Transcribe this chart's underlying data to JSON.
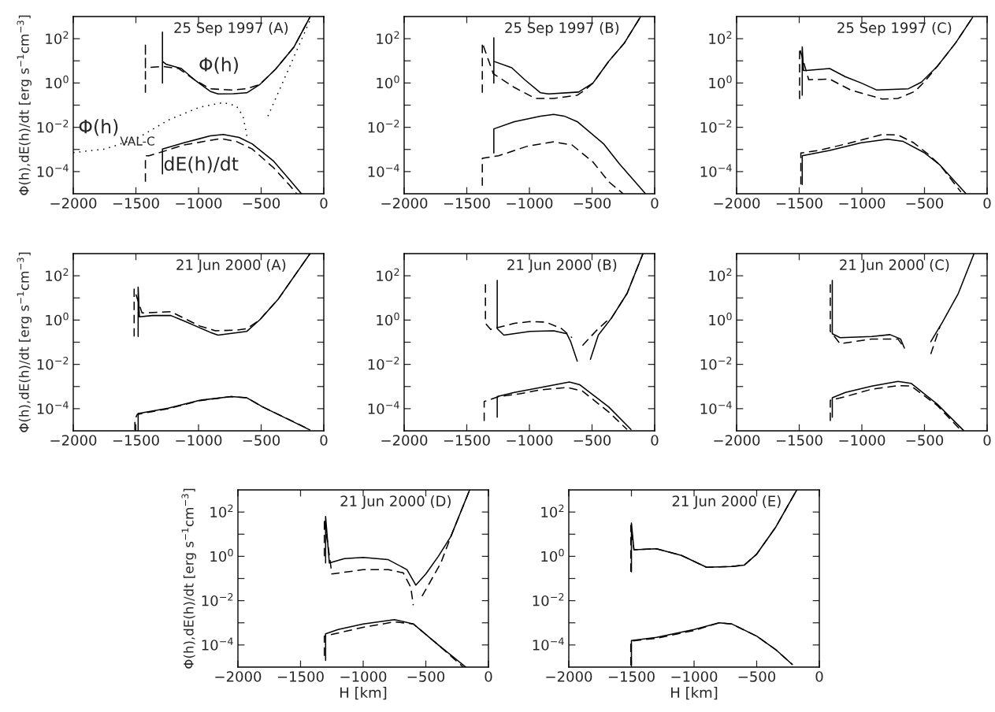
{
  "chart_data": [
    {
      "type": "line",
      "title": "25 Sep 1997 (A)",
      "ylabel": "Φ(h),dE(h)/dt [erg s$^{−1}$cm$^{−3}$]",
      "xlim": [
        -2000,
        0
      ],
      "xticks": [
        -2000,
        -1500,
        -1000,
        -500,
        0
      ],
      "ylim": [
        1e-05,
        1000
      ],
      "log": "y",
      "yticks": [
        {
          "value": 0.0001,
          "label": "10$^{−4}$"
        },
        {
          "value": 0.001,
          "label": null
        },
        {
          "value": 0.01,
          "label": "10$^{−2}$"
        },
        {
          "value": 0.1,
          "label": null
        },
        {
          "value": 1,
          "label": "10$^{0}$"
        },
        {
          "value": 10,
          "label": null
        },
        {
          "value": 100,
          "label": "10$^{2}$"
        }
      ],
      "annotations": [
        "Φ(h)",
        "Φ(h)$_{VAL-C}$",
        "dE(h)/dt"
      ],
      "series": [
        {
          "type": "line",
          "line_style": "solid",
          "color": "#000000",
          "x": [
            -1288,
            -1288,
            -1288,
            -1260,
            -1137,
            -1032,
            -907,
            -844,
            -720,
            -614,
            -509,
            -383,
            -237,
            -111
          ],
          "values": [
            1.0,
            200,
            9.5,
            7.1,
            4.5,
            1.4,
            0.42,
            0.32,
            0.33,
            0.36,
            0.87,
            4.3,
            43,
            930
          ]
        },
        {
          "type": "line",
          "line_style": "dashed",
          "color": "#000000",
          "x": [
            -1424,
            -1424,
            -1424,
            -1290,
            -1158,
            -1032,
            -907,
            -740,
            -614,
            -509,
            -383,
            -237,
            -111
          ],
          "values": [
            0.36,
            63,
            4.9,
            5.6,
            4.5,
            1.4,
            0.55,
            0.48,
            0.55,
            0.87,
            4.3,
            43,
            930
          ]
        },
        {
          "type": "line",
          "line_style": "solid",
          "color": "#000000",
          "x": [
            -1288,
            -1288,
            -1116,
            -907,
            -802,
            -676,
            -572,
            -404,
            -278,
            -178
          ],
          "values": [
            7.9e-05,
            0.00105,
            0.002,
            0.0041,
            0.0047,
            0.0035,
            0.0018,
            0.00031,
            4.6e-05,
            1e-05
          ]
        },
        {
          "type": "line",
          "line_style": "dashed",
          "color": "#000000",
          "x": [
            -1424,
            -1424,
            -1395,
            -1288,
            -1116,
            -823,
            -698,
            -572,
            -404,
            -278,
            -216
          ],
          "values": [
            3.5e-05,
            0.00052,
            0.00052,
            0.00079,
            0.0016,
            0.0031,
            0.0023,
            0.00105,
            0.000155,
            2.6e-05,
            1e-05
          ]
        },
        {
          "type": "line",
          "line_style": "dotted",
          "color": "#000000",
          "x": [
            -2000,
            -1745,
            -1493,
            -1242,
            -991,
            -802,
            -698,
            -645,
            -614,
            -530,
            -446,
            -111
          ],
          "values": [
            0.00072,
            0.00105,
            0.0031,
            0.021,
            0.081,
            0.13,
            0.093,
            0.032,
            0.0041,
            null,
            0.032,
            660
          ]
        }
      ]
    },
    {
      "type": "line",
      "title": "25 Sep 1997 (B)",
      "xlim": [
        -2000,
        0
      ],
      "xticks": [
        -2000,
        -1500,
        -1000,
        -500,
        0
      ],
      "ylim": [
        1e-05,
        1000
      ],
      "log": "y",
      "yticks": [
        {
          "value": 0.0001,
          "label": "10$^{−4}$"
        },
        {
          "value": 0.001,
          "label": null
        },
        {
          "value": 0.01,
          "label": "10$^{−2}$"
        },
        {
          "value": 0.1,
          "label": null
        },
        {
          "value": 1,
          "label": "10$^{0}$"
        },
        {
          "value": 10,
          "label": null
        },
        {
          "value": 100,
          "label": "10$^{2}$"
        }
      ],
      "series": [
        {
          "type": "line",
          "line_style": "solid",
          "color": "#000000",
          "x": [
            -1284,
            -1284,
            -1284,
            -1141,
            -1037,
            -911,
            -848,
            -607,
            -492,
            -367,
            -241,
            -115
          ],
          "values": [
            1.0,
            110,
            9.5,
            4.9,
            1.4,
            0.36,
            0.32,
            0.39,
            1.0,
            9.5,
            65,
            930
          ]
        },
        {
          "type": "line",
          "line_style": "dashed",
          "color": "#000000",
          "x": [
            -1376,
            -1376,
            -1288,
            -1120,
            -953,
            -806,
            -618,
            -555,
            -492,
            -367,
            -241,
            -115
          ],
          "values": [
            0.36,
            65,
            2.6,
            0.63,
            0.2,
            0.2,
            0.28,
            0.48,
            1.0,
            9.5,
            65,
            930
          ]
        },
        {
          "type": "line",
          "line_style": "solid",
          "color": "#000000",
          "x": [
            -1284,
            -1284,
            -1120,
            -911,
            -806,
            -722,
            -618,
            -408,
            -283,
            -73
          ],
          "values": [
            0.00069,
            0.0085,
            0.018,
            0.032,
            0.038,
            0.032,
            0.018,
            0.0018,
            0.00023,
            1e-05
          ]
        },
        {
          "type": "line",
          "line_style": "dashed",
          "color": "#000000",
          "x": [
            -1376,
            -1376,
            -1246,
            -1016,
            -806,
            -660,
            -492,
            -367,
            -251
          ],
          "values": [
            2.3e-05,
            0.0004,
            0.00052,
            0.0014,
            0.0022,
            0.0016,
            0.00027,
            3.5e-05,
            1e-05
          ]
        }
      ]
    },
    {
      "type": "line",
      "title": "25 Sep 1997 (C)",
      "xlim": [
        -2000,
        0
      ],
      "xticks": [
        -2000,
        -1500,
        -1000,
        -500,
        0
      ],
      "ylim": [
        1e-05,
        1000
      ],
      "log": "y",
      "yticks": [
        {
          "value": 0.0001,
          "label": "10$^{−4}$"
        },
        {
          "value": 0.001,
          "label": null
        },
        {
          "value": 0.01,
          "label": "10$^{−2}$"
        },
        {
          "value": 0.1,
          "label": null
        },
        {
          "value": 1,
          "label": "10$^{0}$"
        },
        {
          "value": 10,
          "label": null
        },
        {
          "value": 100,
          "label": "10$^{2}$"
        }
      ],
      "series": [
        {
          "type": "line",
          "line_style": "solid",
          "color": "#000000",
          "x": [
            -1476,
            -1476,
            -1466,
            -1445,
            -1257,
            -1131,
            -1005,
            -880,
            -628,
            -524,
            -398,
            -251,
            -115
          ],
          "values": [
            0.28,
            43,
            3.7,
            3.7,
            4.5,
            1.9,
            1.0,
            0.48,
            0.55,
            1.1,
            5.6,
            65,
            930
          ]
        },
        {
          "type": "line",
          "line_style": "dashed",
          "color": "#000000",
          "x": [
            -1497,
            -1497,
            -1424,
            -1257,
            -1089,
            -838,
            -712,
            -576,
            -503,
            -398,
            -251,
            -115
          ],
          "values": [
            0.19,
            37,
            1.4,
            1.5,
            0.48,
            0.19,
            0.2,
            0.42,
            1.1,
            5.6,
            65,
            930
          ]
        },
        {
          "type": "line",
          "line_style": "solid",
          "color": "#000000",
          "x": [
            -1476,
            -1476,
            -1257,
            -1005,
            -796,
            -670,
            -503,
            -377,
            -168
          ],
          "values": [
            2.6e-05,
            0.00052,
            0.00091,
            0.002,
            0.0029,
            0.0023,
            0.00072,
            0.0002,
            1e-05
          ]
        },
        {
          "type": "line",
          "line_style": "dashed",
          "color": "#000000",
          "x": [
            -1487,
            -1487,
            -1340,
            -1089,
            -838,
            -712,
            -586,
            -482,
            -377,
            -209
          ],
          "values": [
            2.6e-05,
            0.00069,
            0.00091,
            0.002,
            0.0047,
            0.0045,
            0.002,
            0.00069,
            0.0002,
            1.2e-05
          ]
        }
      ]
    },
    {
      "type": "line",
      "title": "21 Jun 2000 (A)",
      "ylabel": "Φ(h),dE(h)/dt [erg s$^{−1}$cm$^{−3}$]",
      "xlim": [
        -2000,
        0
      ],
      "xticks": [
        -2000,
        -1500,
        -1000,
        -500,
        0
      ],
      "ylim": [
        1e-05,
        1000
      ],
      "log": "y",
      "yticks": [
        {
          "value": 0.0001,
          "label": "10$^{−4}$"
        },
        {
          "value": 0.001,
          "label": null
        },
        {
          "value": 0.01,
          "label": "10$^{−2}$"
        },
        {
          "value": 0.1,
          "label": null
        },
        {
          "value": 1,
          "label": "10$^{0}$"
        },
        {
          "value": 10,
          "label": null
        },
        {
          "value": 100,
          "label": "10$^{2}$"
        }
      ],
      "series": [
        {
          "type": "line",
          "line_style": "solid",
          "color": "#000000",
          "x": [
            -1482,
            -1482,
            -1472,
            -1368,
            -1221,
            -1116,
            -907,
            -844,
            -760,
            -614,
            -509,
            -362,
            -111
          ],
          "values": [
            0.18,
            31,
            1.4,
            1.6,
            1.6,
            0.91,
            0.28,
            0.21,
            0.24,
            0.31,
            1.05,
            9.1,
            980
          ]
        },
        {
          "type": "line",
          "line_style": "dashed",
          "color": "#000000",
          "x": [
            -1514,
            -1514,
            -1451,
            -1221,
            -991,
            -865,
            -698,
            -614,
            -509,
            -362,
            -111
          ],
          "values": [
            0.18,
            25,
            2.1,
            2.4,
            0.54,
            0.33,
            0.35,
            0.41,
            1.05,
            9.1,
            980
          ]
        },
        {
          "type": "line",
          "line_style": "solid",
          "color": "#000000",
          "x": [
            -1482,
            -1482,
            -1472,
            -1242,
            -991,
            -739,
            -614,
            -488,
            -111
          ],
          "values": [
            1.05e-05,
            6.2e-05,
            6.2e-05,
            0.000105,
            0.00024,
            0.00035,
            0.00031,
            0.00012,
            1.1e-05
          ]
        },
        {
          "type": "line",
          "line_style": "dashed",
          "color": "#000000",
          "x": [
            -1508,
            -1508,
            -1490,
            -1242,
            -991,
            -739,
            -614,
            -488,
            -120
          ],
          "values": [
            1.05e-05,
            3.1e-05,
            5.5e-05,
            0.0001,
            0.00023,
            0.00035,
            0.00031,
            0.00012,
            1.2e-05
          ]
        }
      ]
    },
    {
      "type": "line",
      "title": "21 Jun 2000 (B)",
      "xlim": [
        -2000,
        0
      ],
      "xticks": [
        -2000,
        -1500,
        -1000,
        -500,
        0
      ],
      "ylim": [
        1e-05,
        1000
      ],
      "log": "y",
      "yticks": [
        {
          "value": 0.0001,
          "label": "10$^{−4}$"
        },
        {
          "value": 0.001,
          "label": null
        },
        {
          "value": 0.01,
          "label": "10$^{−2}$"
        },
        {
          "value": 0.1,
          "label": null
        },
        {
          "value": 1,
          "label": "10$^{0}$"
        },
        {
          "value": 10,
          "label": null
        },
        {
          "value": 100,
          "label": "10$^{2}$"
        }
      ],
      "series": [
        {
          "type": "line",
          "line_style": "solid",
          "color": "#000000",
          "x": [
            -1257,
            -1257,
            -1204,
            -995,
            -806,
            -701,
            -670,
            -618,
            -560,
            -513,
            -450,
            -346,
            -220,
            -94
          ],
          "values": [
            62,
            0.41,
            0.21,
            0.31,
            0.33,
            0.24,
            0.105,
            0.014,
            null,
            0.017,
            0.21,
            1.2,
            16,
            980
          ]
        },
        {
          "type": "line",
          "line_style": "dashed",
          "color": "#000000",
          "x": [
            -1351,
            -1351,
            -1309,
            -1120,
            -995,
            -869,
            -743,
            -660,
            -620,
            -576,
            -471,
            -388,
            -346,
            -220,
            -94
          ],
          "values": [
            41,
            0.71,
            0.38,
            0.71,
            0.85,
            0.81,
            0.41,
            0.16,
            null,
            0.071,
            0.31,
            0.85,
            1.2,
            16,
            980
          ]
        },
        {
          "type": "line",
          "line_style": "solid",
          "color": "#000000",
          "x": [
            -1257,
            -1257,
            -1120,
            -911,
            -681,
            -597,
            -367,
            -189
          ],
          "values": [
            4.1e-05,
            0.00035,
            0.00054,
            0.00091,
            0.0016,
            0.0012,
            0.00012,
            1.15e-05
          ]
        },
        {
          "type": "line",
          "line_style": "dashed",
          "color": "#000000",
          "x": [
            -1361,
            -1361,
            -1246,
            -1079,
            -911,
            -701,
            -576,
            -367,
            -220
          ],
          "values": [
            2.8e-05,
            0.00021,
            0.00035,
            0.00047,
            0.00071,
            0.00091,
            0.00062,
            7.1e-05,
            1.15e-05
          ]
        }
      ]
    },
    {
      "type": "line",
      "title": "21 Jun 2000 (C)",
      "xlim": [
        -2000,
        0
      ],
      "xticks": [
        -2000,
        -1500,
        -1000,
        -500,
        0
      ],
      "ylim": [
        1e-05,
        1000
      ],
      "log": "y",
      "yticks": [
        {
          "value": 0.0001,
          "label": "10$^{−4}$"
        },
        {
          "value": 0.001,
          "label": null
        },
        {
          "value": 0.01,
          "label": "10$^{−2}$"
        },
        {
          "value": 0.1,
          "label": null
        },
        {
          "value": 1,
          "label": "10$^{0}$"
        },
        {
          "value": 10,
          "label": null
        },
        {
          "value": 100,
          "label": "10$^{2}$"
        }
      ],
      "series": [
        {
          "type": "line",
          "line_style": "solid",
          "color": "#000000",
          "x": [
            -1236,
            -1236,
            -1173,
            -921,
            -775,
            -691,
            -660,
            -560,
            -450,
            -356,
            -230,
            -105
          ],
          "values": [
            62,
            0.24,
            0.16,
            0.18,
            0.22,
            0.14,
            0.054,
            null,
            0.105,
            0.81,
            16,
            980
          ]
        },
        {
          "type": "line",
          "line_style": "dashed",
          "color": "#000000",
          "x": [
            -1252,
            -1252,
            -1173,
            -921,
            -712,
            -660,
            -560,
            -450,
            -377
          ],
          "values": [
            41,
            0.31,
            0.085,
            0.14,
            0.14,
            0.054,
            null,
            0.029,
            0.5
          ]
        },
        {
          "type": "line",
          "line_style": "solid",
          "color": "#000000",
          "x": [
            -1236,
            -1236,
            -1131,
            -921,
            -712,
            -607,
            -398,
            -189
          ],
          "values": [
            4.1e-05,
            0.00031,
            0.00054,
            0.00105,
            0.0017,
            0.0014,
            0.00016,
            1.05e-05
          ]
        },
        {
          "type": "line",
          "line_style": "dashed",
          "color": "#000000",
          "x": [
            -1252,
            -1252,
            -1131,
            -921,
            -712,
            -607,
            -398,
            -209
          ],
          "values": [
            2.8e-05,
            0.00024,
            0.00035,
            0.00076,
            0.0011,
            0.00105,
            0.00014,
            1.05e-05
          ]
        }
      ]
    },
    {
      "type": "line",
      "title": "21 Jun 2000 (D)",
      "xlabel": "H [km]",
      "ylabel": "Φ(h),dE(h)/dt [erg s$^{−1}$cm$^{−3}$]",
      "xlim": [
        -2000,
        0
      ],
      "xticks": [
        -2000,
        -1500,
        -1000,
        -500,
        0
      ],
      "ylim": [
        1e-05,
        1000
      ],
      "log": "y",
      "yticks": [
        {
          "value": 0.0001,
          "label": "10$^{−4}$"
        },
        {
          "value": 0.001,
          "label": null
        },
        {
          "value": 0.01,
          "label": "10$^{−2}$"
        },
        {
          "value": 0.1,
          "label": null
        },
        {
          "value": 1,
          "label": "10$^{0}$"
        },
        {
          "value": 10,
          "label": null
        },
        {
          "value": 100,
          "label": "10$^{2}$"
        }
      ],
      "series": [
        {
          "type": "line",
          "line_style": "solid",
          "color": "#000000",
          "x": [
            -1300,
            -1300,
            -1270,
            -1150,
            -1000,
            -800,
            -650,
            -580,
            -500,
            -400,
            -300,
            -150
          ],
          "values": [
            0.5,
            63,
            0.5,
            0.79,
            0.89,
            0.71,
            0.25,
            0.05,
            0.16,
            1.0,
            7.9,
            1000
          ]
        },
        {
          "type": "line",
          "line_style": "dashed",
          "color": "#000000",
          "x": [
            -1310,
            -1310,
            -1250,
            -1000,
            -800,
            -680,
            -620,
            -600,
            -560,
            -530,
            -450,
            -380,
            -300,
            -150
          ],
          "values": [
            1.0,
            50,
            0.16,
            0.25,
            0.25,
            0.18,
            0.04,
            0.0063,
            null,
            0.016,
            0.1,
            0.5,
            7.9,
            1000
          ]
        },
        {
          "type": "line",
          "line_style": "solid",
          "color": "#000000",
          "x": [
            -1300,
            -1300,
            -1200,
            -1000,
            -750,
            -600,
            -400,
            -180
          ],
          "values": [
            2e-05,
            0.00032,
            0.0005,
            0.00089,
            0.0014,
            0.00089,
            0.0001,
            1e-05
          ]
        },
        {
          "type": "line",
          "line_style": "dashed",
          "color": "#000000",
          "x": [
            -1310,
            -1310,
            -1000,
            -750,
            -600,
            -400,
            -200
          ],
          "values": [
            3.2e-05,
            0.00025,
            0.00063,
            0.0011,
            0.00089,
            0.0001,
            1e-05
          ]
        }
      ]
    },
    {
      "type": "line",
      "title": "21 Jun 2000 (E)",
      "xlabel": "H [km]",
      "xlim": [
        -2000,
        0
      ],
      "xticks": [
        -2000,
        -1500,
        -1000,
        -500,
        0
      ],
      "ylim": [
        1e-05,
        1000
      ],
      "log": "y",
      "yticks": [
        {
          "value": 0.0001,
          "label": "10$^{−4}$"
        },
        {
          "value": 0.001,
          "label": null
        },
        {
          "value": 0.01,
          "label": "10$^{−2}$"
        },
        {
          "value": 0.1,
          "label": null
        },
        {
          "value": 1,
          "label": "10$^{0}$"
        },
        {
          "value": 10,
          "label": null
        },
        {
          "value": 100,
          "label": "10$^{2}$"
        }
      ],
      "series": [
        {
          "type": "line",
          "line_style": "solid",
          "color": "#000000",
          "x": [
            -1500,
            -1500,
            -1480,
            -1300,
            -1100,
            -900,
            -700,
            -600,
            -500,
            -350,
            -180
          ],
          "values": [
            0.2,
            32,
            2.0,
            2.2,
            1.1,
            0.32,
            0.35,
            0.4,
            1.26,
            20,
            1000
          ]
        },
        {
          "type": "line",
          "line_style": "dashed",
          "color": "#000000",
          "x": [
            -1505,
            -1505,
            -1480,
            -1300,
            -1100,
            -900,
            -700,
            -600,
            -500,
            -350,
            -180
          ],
          "values": [
            0.2,
            25,
            2.0,
            2.2,
            1.1,
            0.32,
            0.35,
            0.4,
            1.26,
            20,
            1000
          ]
        },
        {
          "type": "line",
          "line_style": "solid",
          "color": "#000000",
          "x": [
            -1500,
            -1500,
            -1300,
            -1000,
            -800,
            -700,
            -500,
            -350,
            -215
          ],
          "values": [
            1.2e-05,
            0.00016,
            0.00022,
            0.0005,
            0.001,
            0.00089,
            0.00025,
            6.3e-05,
            1.3e-05
          ]
        },
        {
          "type": "line",
          "line_style": "dashed",
          "color": "#000000",
          "x": [
            -1505,
            -1505,
            -1300,
            -1000,
            -800,
            -700,
            -500,
            -350,
            -215
          ],
          "values": [
            1.2e-05,
            0.00015,
            0.0002,
            0.00045,
            0.001,
            0.00089,
            0.00025,
            6.3e-05,
            1.3e-05
          ]
        }
      ]
    }
  ]
}
